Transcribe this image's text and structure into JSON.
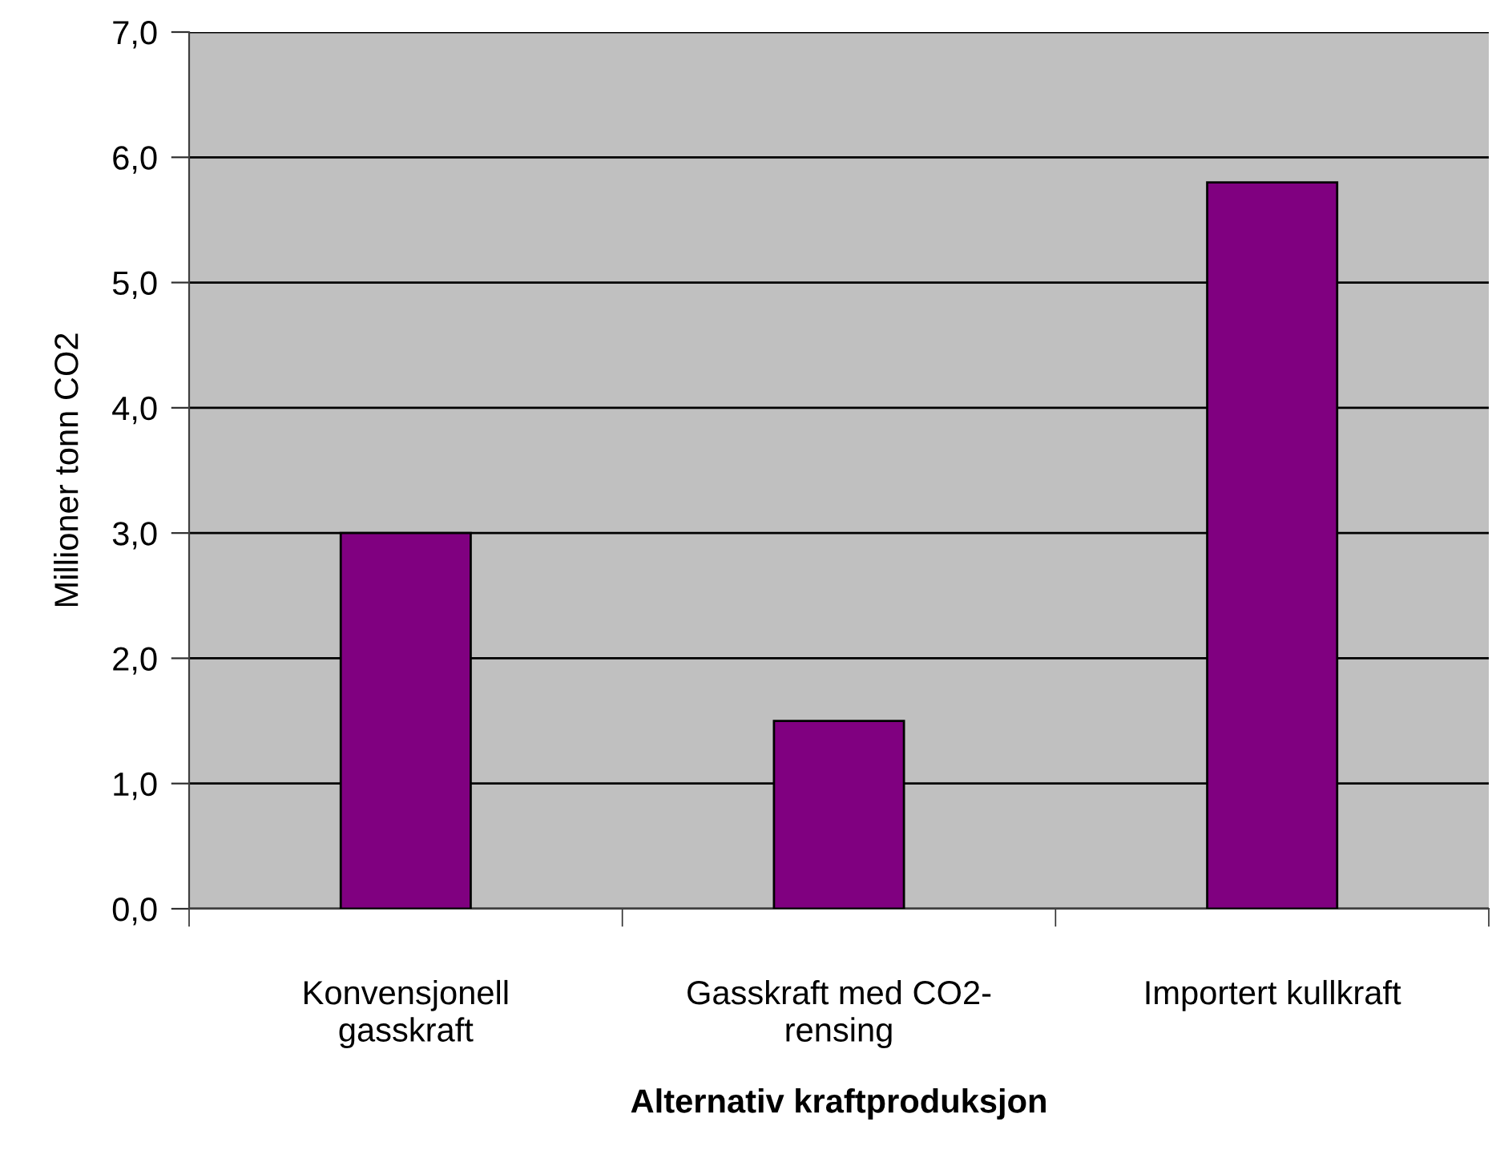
{
  "chart_data": {
    "type": "bar",
    "categories": [
      "Konvensjonell\ngasskraft",
      "Gasskraft med CO2-\nrensing",
      "Importert kullkraft"
    ],
    "values": [
      3.0,
      1.5,
      5.8
    ],
    "color": "#800080",
    "xlabel": "Alternativ kraftproduksjon",
    "ylabel": "Millioner tonn CO2",
    "ylim": [
      0,
      7
    ],
    "yticks": [
      {
        "value": 0,
        "label": "0,0"
      },
      {
        "value": 1,
        "label": "1,0"
      },
      {
        "value": 2,
        "label": "2,0"
      },
      {
        "value": 3,
        "label": "3,0"
      },
      {
        "value": 4,
        "label": "4,0"
      },
      {
        "value": 5,
        "label": "5,0"
      },
      {
        "value": 6,
        "label": "6,0"
      },
      {
        "value": 7,
        "label": "7,0"
      }
    ],
    "grid": "y",
    "legend": false
  }
}
